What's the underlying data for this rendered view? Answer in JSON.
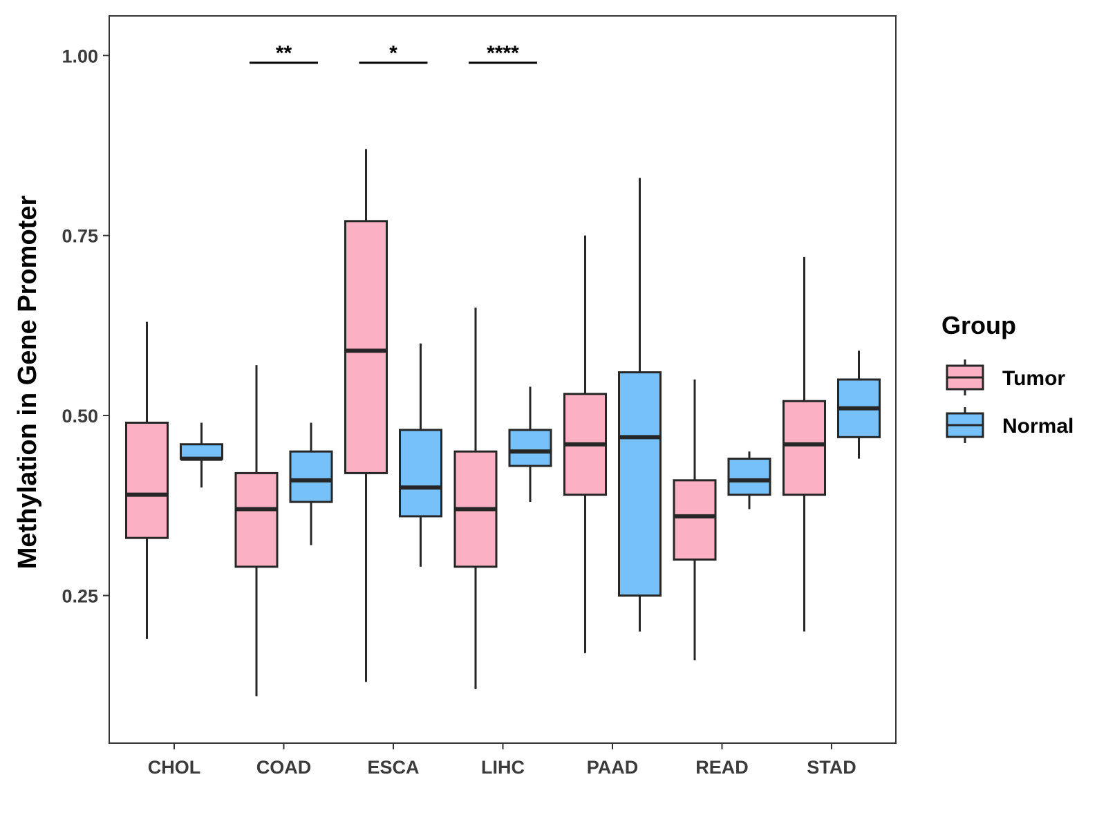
{
  "chart_data": {
    "type": "boxplot",
    "title": "",
    "xlabel": "",
    "ylabel": "Methylation in Gene Promoter",
    "ylim": [
      0.045,
      1.055
    ],
    "y_ticks": [
      0.25,
      0.5,
      0.75,
      1.0
    ],
    "y_tick_labels": [
      "0.25",
      "0.50",
      "0.75",
      "1.00"
    ],
    "grid": false,
    "categories": [
      "CHOL",
      "COAD",
      "ESCA",
      "LIHC",
      "PAAD",
      "READ",
      "STAD"
    ],
    "legend": {
      "title": "Group",
      "position": "right",
      "items": [
        {
          "name": "Tumor",
          "color": "#FBB0C3"
        },
        {
          "name": "Normal",
          "color": "#76C1FA"
        }
      ]
    },
    "series": [
      {
        "name": "Tumor",
        "color": "#FBB0C3",
        "boxes": [
          {
            "category": "CHOL",
            "whisker_low": 0.19,
            "q1": 0.33,
            "median": 0.39,
            "q3": 0.49,
            "whisker_high": 0.63
          },
          {
            "category": "COAD",
            "whisker_low": 0.11,
            "q1": 0.29,
            "median": 0.37,
            "q3": 0.42,
            "whisker_high": 0.57
          },
          {
            "category": "ESCA",
            "whisker_low": 0.13,
            "q1": 0.42,
            "median": 0.59,
            "q3": 0.77,
            "whisker_high": 0.87
          },
          {
            "category": "LIHC",
            "whisker_low": 0.12,
            "q1": 0.29,
            "median": 0.37,
            "q3": 0.45,
            "whisker_high": 0.65
          },
          {
            "category": "PAAD",
            "whisker_low": 0.17,
            "q1": 0.39,
            "median": 0.46,
            "q3": 0.53,
            "whisker_high": 0.75
          },
          {
            "category": "READ",
            "whisker_low": 0.16,
            "q1": 0.3,
            "median": 0.36,
            "q3": 0.41,
            "whisker_high": 0.55
          },
          {
            "category": "STAD",
            "whisker_low": 0.2,
            "q1": 0.39,
            "median": 0.46,
            "q3": 0.52,
            "whisker_high": 0.72
          }
        ]
      },
      {
        "name": "Normal",
        "color": "#76C1FA",
        "boxes": [
          {
            "category": "CHOL",
            "whisker_low": 0.4,
            "q1": 0.44,
            "median": 0.44,
            "q3": 0.46,
            "whisker_high": 0.49
          },
          {
            "category": "COAD",
            "whisker_low": 0.32,
            "q1": 0.38,
            "median": 0.41,
            "q3": 0.45,
            "whisker_high": 0.49
          },
          {
            "category": "ESCA",
            "whisker_low": 0.29,
            "q1": 0.36,
            "median": 0.4,
            "q3": 0.48,
            "whisker_high": 0.6
          },
          {
            "category": "LIHC",
            "whisker_low": 0.38,
            "q1": 0.43,
            "median": 0.45,
            "q3": 0.48,
            "whisker_high": 0.54
          },
          {
            "category": "PAAD",
            "whisker_low": 0.2,
            "q1": 0.25,
            "median": 0.47,
            "q3": 0.56,
            "whisker_high": 0.83
          },
          {
            "category": "READ",
            "whisker_low": 0.37,
            "q1": 0.39,
            "median": 0.41,
            "q3": 0.44,
            "whisker_high": 0.45
          },
          {
            "category": "STAD",
            "whisker_low": 0.44,
            "q1": 0.47,
            "median": 0.51,
            "q3": 0.55,
            "whisker_high": 0.59
          }
        ]
      }
    ],
    "annotations": [
      {
        "category": "COAD",
        "label": "**",
        "y": 0.99
      },
      {
        "category": "ESCA",
        "label": "*",
        "y": 0.99
      },
      {
        "category": "LIHC",
        "label": "****",
        "y": 0.99
      }
    ]
  }
}
